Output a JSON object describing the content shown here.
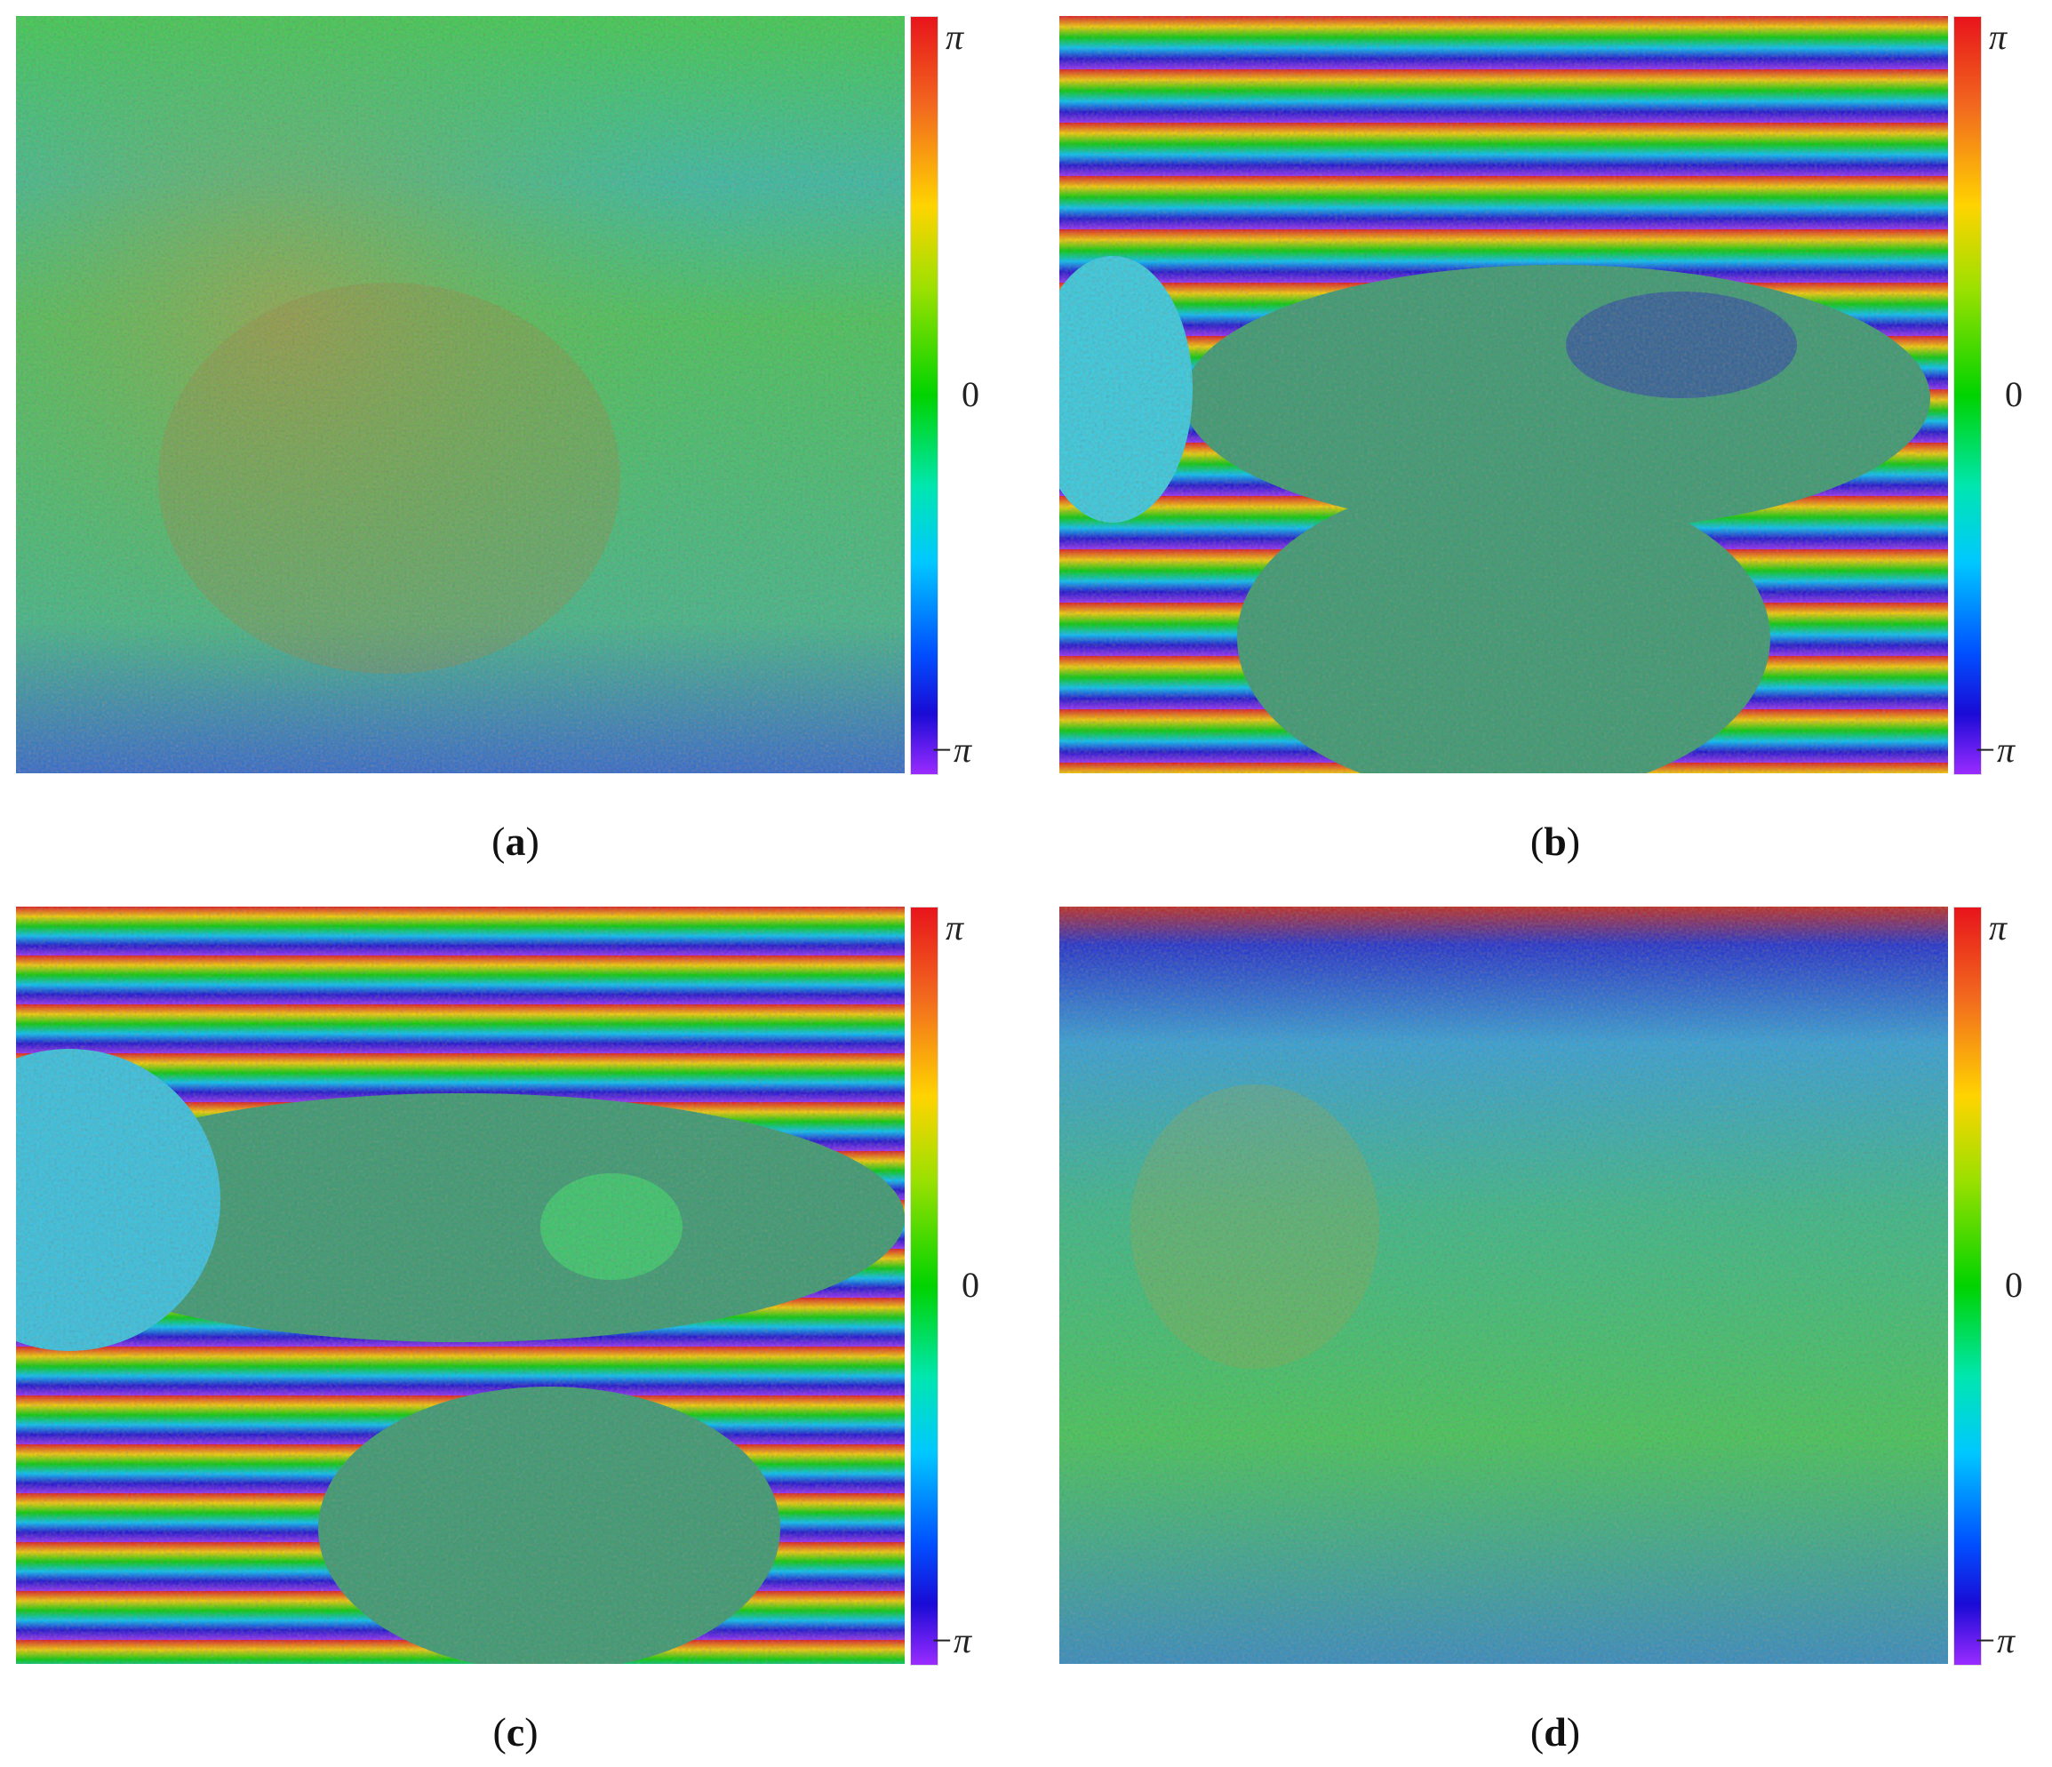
{
  "colorbar": {
    "top_label": "π",
    "mid_label": "0",
    "bottom_label": "−π"
  },
  "panels": [
    {
      "id": "a",
      "caption_open": "(",
      "caption_letter": "a",
      "caption_close": ")",
      "pattern": "noisy"
    },
    {
      "id": "b",
      "caption_open": "(",
      "caption_letter": "b",
      "caption_close": ")",
      "pattern": "saddle"
    },
    {
      "id": "c",
      "caption_open": "(",
      "caption_letter": "c",
      "caption_close": ")",
      "pattern": "fringes"
    },
    {
      "id": "d",
      "caption_open": "(",
      "caption_letter": "d",
      "caption_close": ")",
      "pattern": "flattened"
    }
  ]
}
